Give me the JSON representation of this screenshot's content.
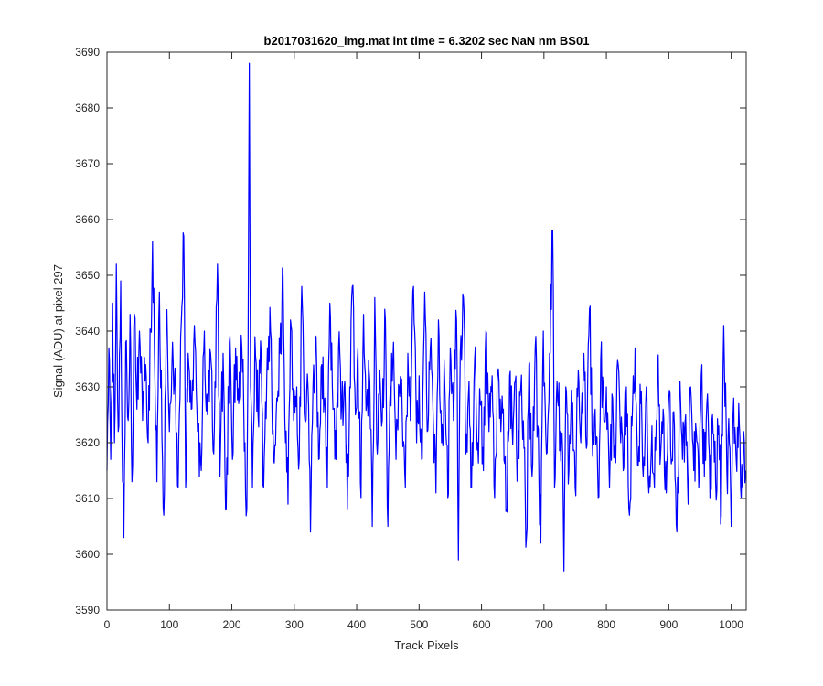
{
  "chart_data": {
    "type": "line",
    "title": "b2017031620_img.mat int time = 6.3202 sec  NaN nm BS01",
    "xlabel": "Track Pixels",
    "ylabel": "Signal (ADU) at pixel 297",
    "xlim": [
      0,
      1024
    ],
    "ylim": [
      3590,
      3690
    ],
    "xticks": [
      0,
      100,
      200,
      300,
      400,
      500,
      600,
      700,
      800,
      900,
      1000
    ],
    "yticks": [
      3590,
      3600,
      3610,
      3620,
      3630,
      3640,
      3650,
      3660,
      3670,
      3680,
      3690
    ],
    "grid": false,
    "legend": "none",
    "line_color": "#0000ff",
    "series": [
      {
        "anchors": [
          [
            0,
            3615
          ],
          [
            3,
            3637
          ],
          [
            6,
            3617
          ],
          [
            9,
            3645
          ],
          [
            12,
            3620
          ],
          [
            15,
            3652
          ],
          [
            18,
            3622
          ],
          [
            22,
            3649
          ],
          [
            25,
            3613
          ],
          [
            27,
            3603
          ],
          [
            30,
            3638
          ],
          [
            34,
            3624
          ],
          [
            37,
            3643
          ],
          [
            40,
            3613
          ],
          [
            44,
            3643
          ],
          [
            48,
            3626
          ],
          [
            52,
            3640
          ],
          [
            57,
            3624
          ],
          [
            62,
            3634
          ],
          [
            66,
            3620
          ],
          [
            70,
            3640
          ],
          [
            73,
            3656
          ],
          [
            77,
            3630
          ],
          [
            80,
            3613
          ],
          [
            84,
            3647
          ],
          [
            88,
            3621
          ],
          [
            91,
            3607
          ],
          [
            95,
            3642
          ],
          [
            100,
            3622
          ],
          [
            105,
            3638
          ],
          [
            110,
            3627
          ],
          [
            114,
            3612
          ],
          [
            118,
            3639
          ],
          [
            123,
            3657
          ],
          [
            126,
            3612
          ],
          [
            130,
            3636
          ],
          [
            135,
            3626
          ],
          [
            140,
            3641
          ],
          [
            146,
            3622
          ],
          [
            151,
            3615
          ],
          [
            156,
            3640
          ],
          [
            161,
            3625
          ],
          [
            166,
            3636
          ],
          [
            171,
            3618
          ],
          [
            177,
            3652
          ],
          [
            181,
            3614
          ],
          [
            186,
            3636
          ],
          [
            191,
            3608
          ],
          [
            196,
            3638
          ],
          [
            201,
            3617
          ],
          [
            206,
            3637
          ],
          [
            211,
            3627
          ],
          [
            216,
            3637
          ],
          [
            221,
            3620
          ],
          [
            224,
            3608
          ],
          [
            226,
            3636
          ],
          [
            228,
            3690
          ],
          [
            230,
            3630
          ],
          [
            233,
            3612
          ],
          [
            237,
            3639
          ],
          [
            242,
            3625
          ],
          [
            247,
            3636
          ],
          [
            251,
            3612
          ],
          [
            256,
            3632
          ],
          [
            262,
            3640
          ],
          [
            267,
            3617
          ],
          [
            272,
            3628
          ],
          [
            277,
            3636
          ],
          [
            282,
            3650
          ],
          [
            286,
            3620
          ],
          [
            290,
            3609
          ],
          [
            294,
            3642
          ],
          [
            299,
            3624
          ],
          [
            304,
            3630
          ],
          [
            308,
            3617
          ],
          [
            312,
            3648
          ],
          [
            317,
            3624
          ],
          [
            322,
            3630
          ],
          [
            326,
            3604
          ],
          [
            330,
            3630
          ],
          [
            335,
            3639
          ],
          [
            339,
            3617
          ],
          [
            344,
            3634
          ],
          [
            349,
            3628
          ],
          [
            353,
            3612
          ],
          [
            357,
            3645
          ],
          [
            362,
            3626
          ],
          [
            367,
            3617
          ],
          [
            371,
            3637
          ],
          [
            376,
            3627
          ],
          [
            381,
            3631
          ],
          [
            385,
            3608
          ],
          [
            389,
            3630
          ],
          [
            393,
            3648
          ],
          [
            398,
            3625
          ],
          [
            402,
            3637
          ],
          [
            407,
            3610
          ],
          [
            411,
            3643
          ],
          [
            416,
            3627
          ],
          [
            421,
            3631
          ],
          [
            425,
            3605
          ],
          [
            429,
            3646
          ],
          [
            433,
            3618
          ],
          [
            437,
            3633
          ],
          [
            441,
            3624
          ],
          [
            446,
            3642
          ],
          [
            450,
            3605
          ],
          [
            454,
            3630
          ],
          [
            459,
            3638
          ],
          [
            463,
            3617
          ],
          [
            468,
            3630
          ],
          [
            473,
            3625
          ],
          [
            478,
            3612
          ],
          [
            482,
            3636
          ],
          [
            486,
            3624
          ],
          [
            491,
            3648
          ],
          [
            496,
            3620
          ],
          [
            500,
            3632
          ],
          [
            504,
            3617
          ],
          [
            509,
            3647
          ],
          [
            513,
            3622
          ],
          [
            518,
            3637
          ],
          [
            522,
            3627
          ],
          [
            527,
            3611
          ],
          [
            531,
            3642
          ],
          [
            536,
            3620
          ],
          [
            541,
            3631
          ],
          [
            546,
            3610
          ],
          [
            550,
            3637
          ],
          [
            555,
            3624
          ],
          [
            560,
            3642
          ],
          [
            563,
            3599
          ],
          [
            566,
            3636
          ],
          [
            571,
            3646
          ],
          [
            575,
            3618
          ],
          [
            580,
            3631
          ],
          [
            584,
            3612
          ],
          [
            589,
            3635
          ],
          [
            594,
            3620
          ],
          [
            598,
            3627
          ],
          [
            603,
            3615
          ],
          [
            607,
            3640
          ],
          [
            612,
            3622
          ],
          [
            617,
            3632
          ],
          [
            621,
            3610
          ],
          [
            626,
            3633
          ],
          [
            631,
            3622
          ],
          [
            635,
            3626
          ],
          [
            640,
            3608
          ],
          [
            645,
            3632
          ],
          [
            649,
            3623
          ],
          [
            654,
            3631
          ],
          [
            658,
            3615
          ],
          [
            663,
            3630
          ],
          [
            668,
            3619
          ],
          [
            672,
            3603
          ],
          [
            676,
            3634
          ],
          [
            681,
            3614
          ],
          [
            686,
            3637
          ],
          [
            690,
            3623
          ],
          [
            695,
            3602
          ],
          [
            699,
            3640
          ],
          [
            704,
            3618
          ],
          [
            709,
            3636
          ],
          [
            714,
            3658
          ],
          [
            717,
            3612
          ],
          [
            721,
            3631
          ],
          [
            726,
            3622
          ],
          [
            730,
            3618
          ],
          [
            732,
            3597
          ],
          [
            735,
            3630
          ],
          [
            740,
            3615
          ],
          [
            745,
            3627
          ],
          [
            750,
            3612
          ],
          [
            755,
            3633
          ],
          [
            759,
            3620
          ],
          [
            764,
            3636
          ],
          [
            768,
            3619
          ],
          [
            773,
            3644
          ],
          [
            777,
            3622
          ],
          [
            782,
            3626
          ],
          [
            787,
            3610
          ],
          [
            791,
            3635
          ],
          [
            796,
            3624
          ],
          [
            800,
            3630
          ],
          [
            805,
            3612
          ],
          [
            810,
            3628
          ],
          [
            814,
            3618
          ],
          [
            819,
            3634
          ],
          [
            823,
            3620
          ],
          [
            827,
            3615
          ],
          [
            832,
            3630
          ],
          [
            837,
            3607
          ],
          [
            841,
            3623
          ],
          [
            846,
            3637
          ],
          [
            850,
            3616
          ],
          [
            855,
            3627
          ],
          [
            859,
            3614
          ],
          [
            864,
            3630
          ],
          [
            868,
            3611
          ],
          [
            873,
            3623
          ],
          [
            877,
            3612
          ],
          [
            882,
            3633
          ],
          [
            887,
            3618
          ],
          [
            891,
            3626
          ],
          [
            896,
            3611
          ],
          [
            900,
            3628
          ],
          [
            905,
            3617
          ],
          [
            909,
            3623
          ],
          [
            913,
            3604
          ],
          [
            918,
            3631
          ],
          [
            922,
            3617
          ],
          [
            927,
            3625
          ],
          [
            931,
            3609
          ],
          [
            935,
            3630
          ],
          [
            940,
            3615
          ],
          [
            944,
            3622
          ],
          [
            948,
            3612
          ],
          [
            952,
            3632
          ],
          [
            957,
            3614
          ],
          [
            961,
            3627
          ],
          [
            966,
            3610
          ],
          [
            970,
            3625
          ],
          [
            975,
            3613
          ],
          [
            980,
            3623
          ],
          [
            984,
            3607
          ],
          [
            988,
            3641
          ],
          [
            993,
            3615
          ],
          [
            997,
            3620
          ],
          [
            1000,
            3605
          ],
          [
            1004,
            3628
          ],
          [
            1008,
            3617
          ],
          [
            1012,
            3627
          ],
          [
            1016,
            3610
          ],
          [
            1020,
            3622
          ],
          [
            1023,
            3615
          ]
        ]
      }
    ]
  }
}
